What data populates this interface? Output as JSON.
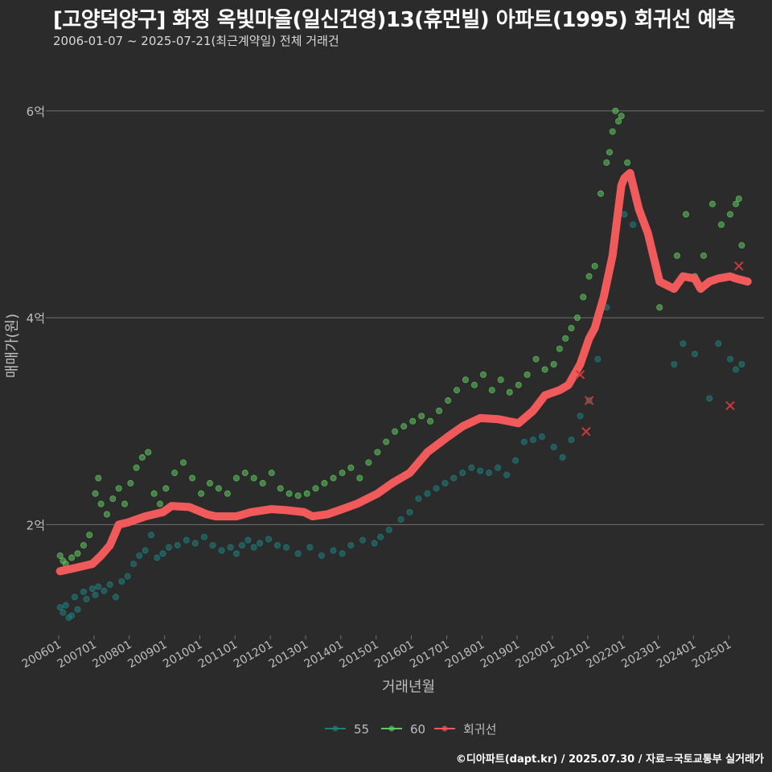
{
  "title": "[고양덕양구] 화정 옥빛마을(일신건영)13(휴먼빌) 아파트(1995) 회귀선 예측",
  "subtitle": "2006-01-07 ~ 2025-07-21(최근계약일) 전체 거래건",
  "caption": "©디아파트(dapt.kr) / 2025.07.30 / 자료=국토교통부 실거래가",
  "colors": {
    "background": "#2b2b2b",
    "grid": "#707070",
    "series_55": "#1f7f7f",
    "series_60": "#5fc85f",
    "regression": "#f05a5a"
  },
  "chart_data": {
    "type": "scatter",
    "xlabel": "거래년월",
    "ylabel": "매매가(원)",
    "xlim": [
      "2005-10-01",
      "2025-12-31"
    ],
    "ylim": [
      0.93,
      6.45
    ],
    "y_unit": "억",
    "y_ticks": [
      {
        "value": 2,
        "label": "2억"
      },
      {
        "value": 4,
        "label": "4억"
      },
      {
        "value": 6,
        "label": "6억"
      }
    ],
    "x_ticks": [
      {
        "date": "2006-01-01",
        "label": "200601"
      },
      {
        "date": "2007-01-01",
        "label": "200701"
      },
      {
        "date": "2008-01-01",
        "label": "200801"
      },
      {
        "date": "2009-01-01",
        "label": "200901"
      },
      {
        "date": "2010-01-01",
        "label": "201001"
      },
      {
        "date": "2011-01-01",
        "label": "201101"
      },
      {
        "date": "2012-01-01",
        "label": "201201"
      },
      {
        "date": "2013-01-01",
        "label": "201301"
      },
      {
        "date": "2014-01-01",
        "label": "201401"
      },
      {
        "date": "2015-01-01",
        "label": "201501"
      },
      {
        "date": "2016-01-01",
        "label": "201601"
      },
      {
        "date": "2017-01-01",
        "label": "201701"
      },
      {
        "date": "2018-01-01",
        "label": "201801"
      },
      {
        "date": "2019-01-01",
        "label": "201901"
      },
      {
        "date": "2020-01-01",
        "label": "202001"
      },
      {
        "date": "2021-01-01",
        "label": "202101"
      },
      {
        "date": "2022-01-01",
        "label": "202201"
      },
      {
        "date": "2023-01-01",
        "label": "202301"
      },
      {
        "date": "2024-01-01",
        "label": "202401"
      },
      {
        "date": "2025-01-01",
        "label": "202501"
      }
    ],
    "grid": "horizontal",
    "legend_position": "bottom",
    "series": [
      {
        "name": "55",
        "points": [
          [
            "2006-01",
            1.2
          ],
          [
            "2006-02",
            1.15
          ],
          [
            "2006-03",
            1.22
          ],
          [
            "2006-04",
            1.1
          ],
          [
            "2006-05",
            1.12
          ],
          [
            "2006-06",
            1.3
          ],
          [
            "2006-07",
            1.18
          ],
          [
            "2006-09",
            1.35
          ],
          [
            "2006-10",
            1.28
          ],
          [
            "2006-12",
            1.38
          ],
          [
            "2007-01",
            1.32
          ],
          [
            "2007-02",
            1.4
          ],
          [
            "2007-04",
            1.36
          ],
          [
            "2007-06",
            1.42
          ],
          [
            "2007-08",
            1.3
          ],
          [
            "2007-10",
            1.45
          ],
          [
            "2007-12",
            1.5
          ],
          [
            "2008-02",
            1.62
          ],
          [
            "2008-04",
            1.7
          ],
          [
            "2008-06",
            1.75
          ],
          [
            "2008-08",
            1.9
          ],
          [
            "2008-10",
            1.68
          ],
          [
            "2008-12",
            1.72
          ],
          [
            "2009-02",
            1.78
          ],
          [
            "2009-05",
            1.8
          ],
          [
            "2009-08",
            1.85
          ],
          [
            "2009-11",
            1.82
          ],
          [
            "2010-02",
            1.88
          ],
          [
            "2010-05",
            1.8
          ],
          [
            "2010-08",
            1.75
          ],
          [
            "2010-11",
            1.78
          ],
          [
            "2011-01",
            1.72
          ],
          [
            "2011-03",
            1.8
          ],
          [
            "2011-05",
            1.85
          ],
          [
            "2011-07",
            1.78
          ],
          [
            "2011-09",
            1.82
          ],
          [
            "2011-12",
            1.86
          ],
          [
            "2012-03",
            1.8
          ],
          [
            "2012-06",
            1.78
          ],
          [
            "2012-10",
            1.72
          ],
          [
            "2013-02",
            1.78
          ],
          [
            "2013-06",
            1.7
          ],
          [
            "2013-10",
            1.75
          ],
          [
            "2014-01",
            1.72
          ],
          [
            "2014-04",
            1.8
          ],
          [
            "2014-08",
            1.85
          ],
          [
            "2014-12",
            1.82
          ],
          [
            "2015-02",
            1.88
          ],
          [
            "2015-05",
            1.95
          ],
          [
            "2015-09",
            2.05
          ],
          [
            "2015-12",
            2.12
          ],
          [
            "2016-03",
            2.25
          ],
          [
            "2016-06",
            2.3
          ],
          [
            "2016-09",
            2.35
          ],
          [
            "2016-12",
            2.4
          ],
          [
            "2017-03",
            2.45
          ],
          [
            "2017-06",
            2.5
          ],
          [
            "2017-09",
            2.55
          ],
          [
            "2017-12",
            2.52
          ],
          [
            "2018-03",
            2.5
          ],
          [
            "2018-06",
            2.55
          ],
          [
            "2018-09",
            2.48
          ],
          [
            "2018-12",
            2.62
          ],
          [
            "2019-03",
            2.8
          ],
          [
            "2019-06",
            2.82
          ],
          [
            "2019-09",
            2.85
          ],
          [
            "2020-01",
            2.75
          ],
          [
            "2020-04",
            2.65
          ],
          [
            "2020-07",
            2.82
          ],
          [
            "2020-10",
            3.05
          ],
          [
            "2021-01",
            3.2
          ],
          [
            "2021-04",
            3.6
          ],
          [
            "2021-07",
            4.1
          ],
          [
            "2021-10",
            4.9
          ],
          [
            "2022-01",
            5.0
          ],
          [
            "2022-04",
            4.9
          ],
          [
            "2023-06",
            3.55
          ],
          [
            "2023-09",
            3.75
          ],
          [
            "2024-01",
            3.65
          ],
          [
            "2024-06",
            3.22
          ],
          [
            "2024-09",
            3.75
          ],
          [
            "2025-01",
            3.6
          ],
          [
            "2025-03",
            3.5
          ],
          [
            "2025-05",
            3.55
          ]
        ]
      },
      {
        "name": "60",
        "points": [
          [
            "2006-01",
            1.7
          ],
          [
            "2006-02",
            1.65
          ],
          [
            "2006-03",
            1.62
          ],
          [
            "2006-05",
            1.68
          ],
          [
            "2006-07",
            1.72
          ],
          [
            "2006-09",
            1.8
          ],
          [
            "2006-11",
            1.9
          ],
          [
            "2007-01",
            2.3
          ],
          [
            "2007-02",
            2.45
          ],
          [
            "2007-03",
            2.2
          ],
          [
            "2007-05",
            2.1
          ],
          [
            "2007-07",
            2.25
          ],
          [
            "2007-09",
            2.35
          ],
          [
            "2007-11",
            2.2
          ],
          [
            "2008-01",
            2.4
          ],
          [
            "2008-03",
            2.55
          ],
          [
            "2008-05",
            2.65
          ],
          [
            "2008-07",
            2.7
          ],
          [
            "2008-09",
            2.3
          ],
          [
            "2008-11",
            2.2
          ],
          [
            "2009-01",
            2.35
          ],
          [
            "2009-04",
            2.5
          ],
          [
            "2009-07",
            2.6
          ],
          [
            "2009-10",
            2.45
          ],
          [
            "2010-01",
            2.3
          ],
          [
            "2010-04",
            2.4
          ],
          [
            "2010-07",
            2.35
          ],
          [
            "2010-10",
            2.3
          ],
          [
            "2011-01",
            2.45
          ],
          [
            "2011-04",
            2.5
          ],
          [
            "2011-07",
            2.45
          ],
          [
            "2011-10",
            2.4
          ],
          [
            "2012-01",
            2.5
          ],
          [
            "2012-04",
            2.35
          ],
          [
            "2012-07",
            2.3
          ],
          [
            "2012-10",
            2.28
          ],
          [
            "2013-01",
            2.3
          ],
          [
            "2013-04",
            2.35
          ],
          [
            "2013-07",
            2.4
          ],
          [
            "2013-10",
            2.45
          ],
          [
            "2014-01",
            2.5
          ],
          [
            "2014-04",
            2.55
          ],
          [
            "2014-07",
            2.45
          ],
          [
            "2014-10",
            2.6
          ],
          [
            "2015-01",
            2.7
          ],
          [
            "2015-04",
            2.8
          ],
          [
            "2015-07",
            2.9
          ],
          [
            "2015-10",
            2.95
          ],
          [
            "2016-01",
            3.0
          ],
          [
            "2016-04",
            3.05
          ],
          [
            "2016-07",
            3.0
          ],
          [
            "2016-10",
            3.1
          ],
          [
            "2017-01",
            3.2
          ],
          [
            "2017-04",
            3.3
          ],
          [
            "2017-07",
            3.4
          ],
          [
            "2017-10",
            3.35
          ],
          [
            "2018-01",
            3.45
          ],
          [
            "2018-04",
            3.3
          ],
          [
            "2018-07",
            3.4
          ],
          [
            "2018-10",
            3.28
          ],
          [
            "2019-01",
            3.35
          ],
          [
            "2019-04",
            3.45
          ],
          [
            "2019-07",
            3.6
          ],
          [
            "2019-10",
            3.5
          ],
          [
            "2020-01",
            3.55
          ],
          [
            "2020-03",
            3.7
          ],
          [
            "2020-05",
            3.8
          ],
          [
            "2020-07",
            3.9
          ],
          [
            "2020-09",
            4.0
          ],
          [
            "2020-11",
            4.2
          ],
          [
            "2021-01",
            4.4
          ],
          [
            "2021-03",
            4.5
          ],
          [
            "2021-05",
            5.2
          ],
          [
            "2021-07",
            5.5
          ],
          [
            "2021-08",
            5.6
          ],
          [
            "2021-09",
            5.8
          ],
          [
            "2021-10",
            6.0
          ],
          [
            "2021-11",
            5.9
          ],
          [
            "2021-12",
            5.95
          ],
          [
            "2022-02",
            5.5
          ],
          [
            "2022-05",
            5.2
          ],
          [
            "2023-01",
            4.1
          ],
          [
            "2023-04",
            4.3
          ],
          [
            "2023-07",
            4.6
          ],
          [
            "2023-10",
            5.0
          ],
          [
            "2024-01",
            4.4
          ],
          [
            "2024-04",
            4.6
          ],
          [
            "2024-07",
            5.1
          ],
          [
            "2024-10",
            4.9
          ],
          [
            "2025-01",
            5.0
          ],
          [
            "2025-03",
            5.1
          ],
          [
            "2025-04",
            5.15
          ],
          [
            "2025-05",
            4.7
          ]
        ]
      }
    ],
    "regression": {
      "name": "회귀선",
      "points": [
        [
          "2006-01",
          1.55
        ],
        [
          "2006-06",
          1.58
        ],
        [
          "2006-12",
          1.62
        ],
        [
          "2007-03",
          1.7
        ],
        [
          "2007-06",
          1.8
        ],
        [
          "2007-09",
          2.0
        ],
        [
          "2007-12",
          2.02
        ],
        [
          "2008-06",
          2.08
        ],
        [
          "2008-12",
          2.12
        ],
        [
          "2009-03",
          2.18
        ],
        [
          "2009-09",
          2.17
        ],
        [
          "2010-03",
          2.1
        ],
        [
          "2010-06",
          2.08
        ],
        [
          "2011-01",
          2.08
        ],
        [
          "2011-06",
          2.12
        ],
        [
          "2012-01",
          2.15
        ],
        [
          "2012-06",
          2.14
        ],
        [
          "2012-12",
          2.12
        ],
        [
          "2013-03",
          2.08
        ],
        [
          "2013-08",
          2.1
        ],
        [
          "2014-01",
          2.15
        ],
        [
          "2014-06",
          2.2
        ],
        [
          "2015-01",
          2.3
        ],
        [
          "2015-06",
          2.4
        ],
        [
          "2015-12",
          2.5
        ],
        [
          "2016-06",
          2.7
        ],
        [
          "2017-01",
          2.85
        ],
        [
          "2017-06",
          2.95
        ],
        [
          "2017-12",
          3.03
        ],
        [
          "2018-06",
          3.02
        ],
        [
          "2019-01",
          2.98
        ],
        [
          "2019-06",
          3.1
        ],
        [
          "2019-10",
          3.25
        ],
        [
          "2020-03",
          3.3
        ],
        [
          "2020-06",
          3.35
        ],
        [
          "2020-10",
          3.55
        ],
        [
          "2021-01",
          3.8
        ],
        [
          "2021-03",
          3.9
        ],
        [
          "2021-06",
          4.2
        ],
        [
          "2021-09",
          4.6
        ],
        [
          "2021-12",
          5.28
        ],
        [
          "2022-01",
          5.35
        ],
        [
          "2022-03",
          5.4
        ],
        [
          "2022-06",
          5.05
        ],
        [
          "2022-09",
          4.82
        ],
        [
          "2023-01",
          4.35
        ],
        [
          "2023-06",
          4.28
        ],
        [
          "2023-09",
          4.4
        ],
        [
          "2024-01",
          4.38
        ],
        [
          "2024-03",
          4.28
        ],
        [
          "2024-06",
          4.35
        ],
        [
          "2024-09",
          4.38
        ],
        [
          "2025-01",
          4.4
        ],
        [
          "2025-03",
          4.38
        ],
        [
          "2025-07",
          4.35
        ]
      ],
      "markers": [
        [
          "2020-10",
          3.45
        ],
        [
          "2021-01",
          3.2
        ],
        [
          "2020-12",
          2.9
        ],
        [
          "2025-04",
          4.5
        ],
        [
          "2025-01",
          3.15
        ]
      ]
    }
  }
}
